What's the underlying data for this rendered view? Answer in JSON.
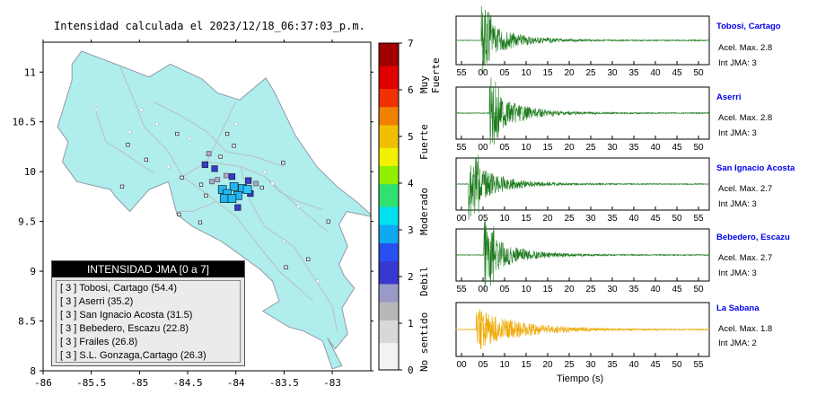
{
  "map": {
    "title": "Intensidad calculada el 2023/12/18_06:37:03_p.m.",
    "x_ticks": [
      "-86",
      "-85.5",
      "-85",
      "-84.5",
      "-84",
      "-83.5",
      "-83"
    ],
    "y_ticks": [
      "11",
      "10.5",
      "10",
      "9.5",
      "9",
      "8.5",
      "8"
    ],
    "legend_title": "INTENSIDAD JMA [0 a 7]",
    "legend_items": [
      "[ 3 ]  Tobosi, Cartago (54.4)",
      "[ 3 ]  Aserri (35.2)",
      "[ 3 ]  San Ignacio Acosta (31.5)",
      "[ 3 ]  Bebedero, Escazu (22.8)",
      "[ 3 ]  Frailes (26.8)",
      "[ 3 ]  S.L. Gonzaga,Cartago (26.3)"
    ]
  },
  "colorbar": {
    "ticks": [
      "7",
      "6",
      "5",
      "4",
      "3",
      "2",
      "1",
      "0"
    ],
    "labels": [
      "Muy Fuerte",
      "Fuerte",
      "Moderado",
      "Debil",
      "No sentido"
    ]
  },
  "waveforms": [
    {
      "name": "Tobosi, Cartago",
      "accel": "Acel. Max. 2.8",
      "int": "Int JMA: 3",
      "color": "#1a7a1a",
      "ticks": [
        "55",
        "00",
        "05",
        "10",
        "15",
        "20",
        "25",
        "30",
        "35",
        "40",
        "45",
        "50"
      ]
    },
    {
      "name": "Aserri",
      "accel": "Acel. Max. 2.8",
      "int": "Int JMA: 3",
      "color": "#1a7a1a",
      "ticks": [
        "55",
        "00",
        "05",
        "10",
        "15",
        "20",
        "25",
        "30",
        "35",
        "40",
        "45",
        "50"
      ]
    },
    {
      "name": "San Ignacio Acosta",
      "accel": "Acel. Max. 2.7",
      "int": "Int JMA: 3",
      "color": "#1a7a1a",
      "ticks": [
        "00",
        "05",
        "10",
        "15",
        "20",
        "25",
        "30",
        "35",
        "40",
        "45",
        "50",
        "55"
      ]
    },
    {
      "name": "Bebedero, Escazu",
      "accel": "Acel. Max. 2.7",
      "int": "Int JMA: 3",
      "color": "#1a7a1a",
      "ticks": [
        "55",
        "00",
        "05",
        "10",
        "15",
        "20",
        "25",
        "30",
        "35",
        "40",
        "45",
        "50"
      ]
    },
    {
      "name": "La Sabana",
      "accel": "Acel. Max. 1.8",
      "int": "Int JMA: 2",
      "color": "#f0a800",
      "ticks": [
        "00",
        "05",
        "10",
        "15",
        "20",
        "25",
        "30",
        "35",
        "40",
        "45",
        "50",
        "55"
      ]
    }
  ],
  "time_axis_label": "Tiempo (s)",
  "chart_data": {
    "type": "scatter",
    "title": "Intensidad calculada el 2023/12/18_06:37:03_p.m.",
    "xlim": [
      -86,
      -82.6
    ],
    "ylim": [
      8,
      11.3
    ],
    "stations": [
      {
        "x": -84.02,
        "y": 9.85,
        "int": 3
      },
      {
        "x": -83.93,
        "y": 9.83,
        "int": 3
      },
      {
        "x": -84.14,
        "y": 9.82,
        "int": 3
      },
      {
        "x": -84.09,
        "y": 9.78,
        "int": 3
      },
      {
        "x": -83.98,
        "y": 9.76,
        "int": 3
      },
      {
        "x": -84.12,
        "y": 9.73,
        "int": 3
      },
      {
        "x": -84.04,
        "y": 9.73,
        "int": 3
      },
      {
        "x": -83.88,
        "y": 9.82,
        "int": 3
      },
      {
        "x": -83.98,
        "y": 9.64,
        "int": 2
      },
      {
        "x": -84.22,
        "y": 10.03,
        "int": 2
      },
      {
        "x": -84.04,
        "y": 9.95,
        "int": 2
      },
      {
        "x": -83.87,
        "y": 9.91,
        "int": 2
      },
      {
        "x": -84.32,
        "y": 10.07,
        "int": 2
      },
      {
        "x": -83.85,
        "y": 9.78,
        "int": 2
      },
      {
        "x": -84.19,
        "y": 9.92,
        "int": 1
      },
      {
        "x": -84.28,
        "y": 10.18,
        "int": 1
      },
      {
        "x": -84.1,
        "y": 9.96,
        "int": 1
      },
      {
        "x": -83.79,
        "y": 9.88,
        "int": 1
      },
      {
        "x": -84.25,
        "y": 9.9,
        "int": 1
      },
      {
        "x": -84.02,
        "y": 10.26,
        "int": 0
      },
      {
        "x": -84.16,
        "y": 10.15,
        "int": 0
      },
      {
        "x": -83.51,
        "y": 10.09,
        "int": 0
      },
      {
        "x": -83.73,
        "y": 9.84,
        "int": 0
      },
      {
        "x": -84.36,
        "y": 9.87,
        "int": 0
      },
      {
        "x": -84.59,
        "y": 9.57,
        "int": 0
      },
      {
        "x": -84.37,
        "y": 9.49,
        "int": 0
      },
      {
        "x": -84.56,
        "y": 9.94,
        "int": 0
      },
      {
        "x": -84.93,
        "y": 10.12,
        "int": 0
      },
      {
        "x": -85.12,
        "y": 10.27,
        "int": 0
      },
      {
        "x": -85.18,
        "y": 9.85,
        "int": 0
      },
      {
        "x": -83.04,
        "y": 9.5,
        "int": 0
      },
      {
        "x": -83.25,
        "y": 9.12,
        "int": 0
      },
      {
        "x": -83.48,
        "y": 9.04,
        "int": 0
      },
      {
        "x": -84.09,
        "y": 10.38,
        "int": 0
      },
      {
        "x": -84.61,
        "y": 10.38,
        "int": 0
      },
      {
        "x": -84.31,
        "y": 9.76,
        "int": 0
      }
    ],
    "waveform_series": [
      {
        "name": "Tobosi, Cartago",
        "values": [
          2.8
        ]
      },
      {
        "name": "Aserri",
        "values": [
          2.8
        ]
      },
      {
        "name": "San Ignacio Acosta",
        "values": [
          2.7
        ]
      },
      {
        "name": "Bebedero, Escazu",
        "values": [
          2.7
        ]
      },
      {
        "name": "La Sabana",
        "values": [
          1.8
        ]
      }
    ],
    "colorbar_range": [
      0,
      7
    ]
  }
}
